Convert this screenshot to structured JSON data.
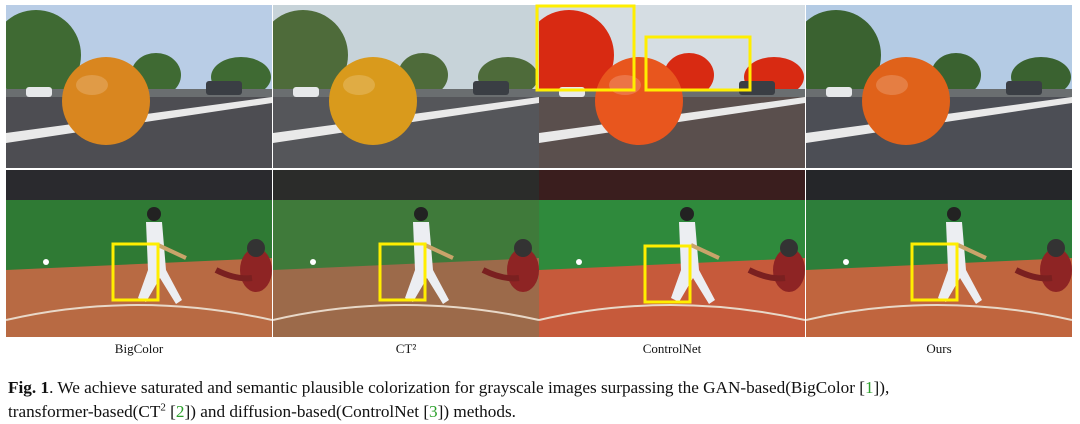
{
  "figure": {
    "labels": [
      "BigColor",
      "CT²",
      "ControlNet",
      "Ours"
    ],
    "caption": [
      "Fig. 1",
      ". We achieve saturated and semantic plausible colorization for grayscale images surpassing the GAN-based(BigColor [",
      "1",
      "]),",
      "transformer-based(CT",
      "2",
      " [",
      "2",
      "]) and diffusion-based(ControlNet [",
      "3",
      "]) methods."
    ]
  }
}
